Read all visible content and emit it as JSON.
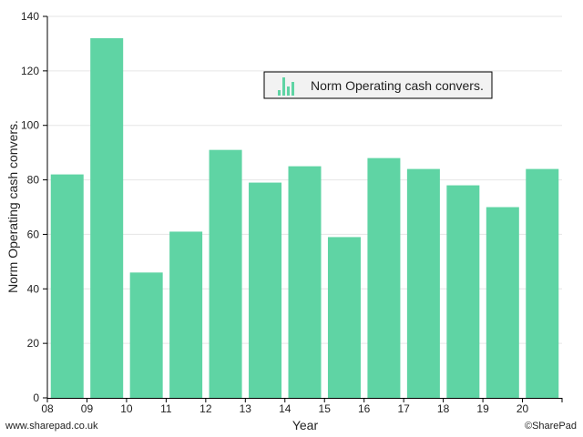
{
  "chart_data": {
    "type": "bar",
    "categories": [
      "08",
      "09",
      "10",
      "11",
      "12",
      "13",
      "14",
      "15",
      "16",
      "17",
      "18",
      "19",
      "20"
    ],
    "series": [
      {
        "name": "Norm Operating cash convers.",
        "values": [
          82,
          132,
          46,
          61,
          91,
          79,
          85,
          59,
          88,
          84,
          78,
          70,
          84
        ],
        "color": "#5fd4a4"
      }
    ],
    "xlabel": "Year",
    "ylabel": "Norm Operating cash convers.",
    "ylim": [
      0,
      140
    ],
    "yticks": [
      0,
      20,
      40,
      60,
      80,
      100,
      120,
      140
    ],
    "grid": true,
    "legend_position": "top-right"
  },
  "footer": {
    "left": "www.sharepad.co.uk",
    "right": "©SharePad"
  },
  "colors": {
    "bar": "#5fd4a4",
    "grid": "#e6e6e6",
    "axis": "#000000",
    "legend_bg": "#f2f2f2"
  },
  "icons": {
    "legend": "bar-chart-icon"
  }
}
